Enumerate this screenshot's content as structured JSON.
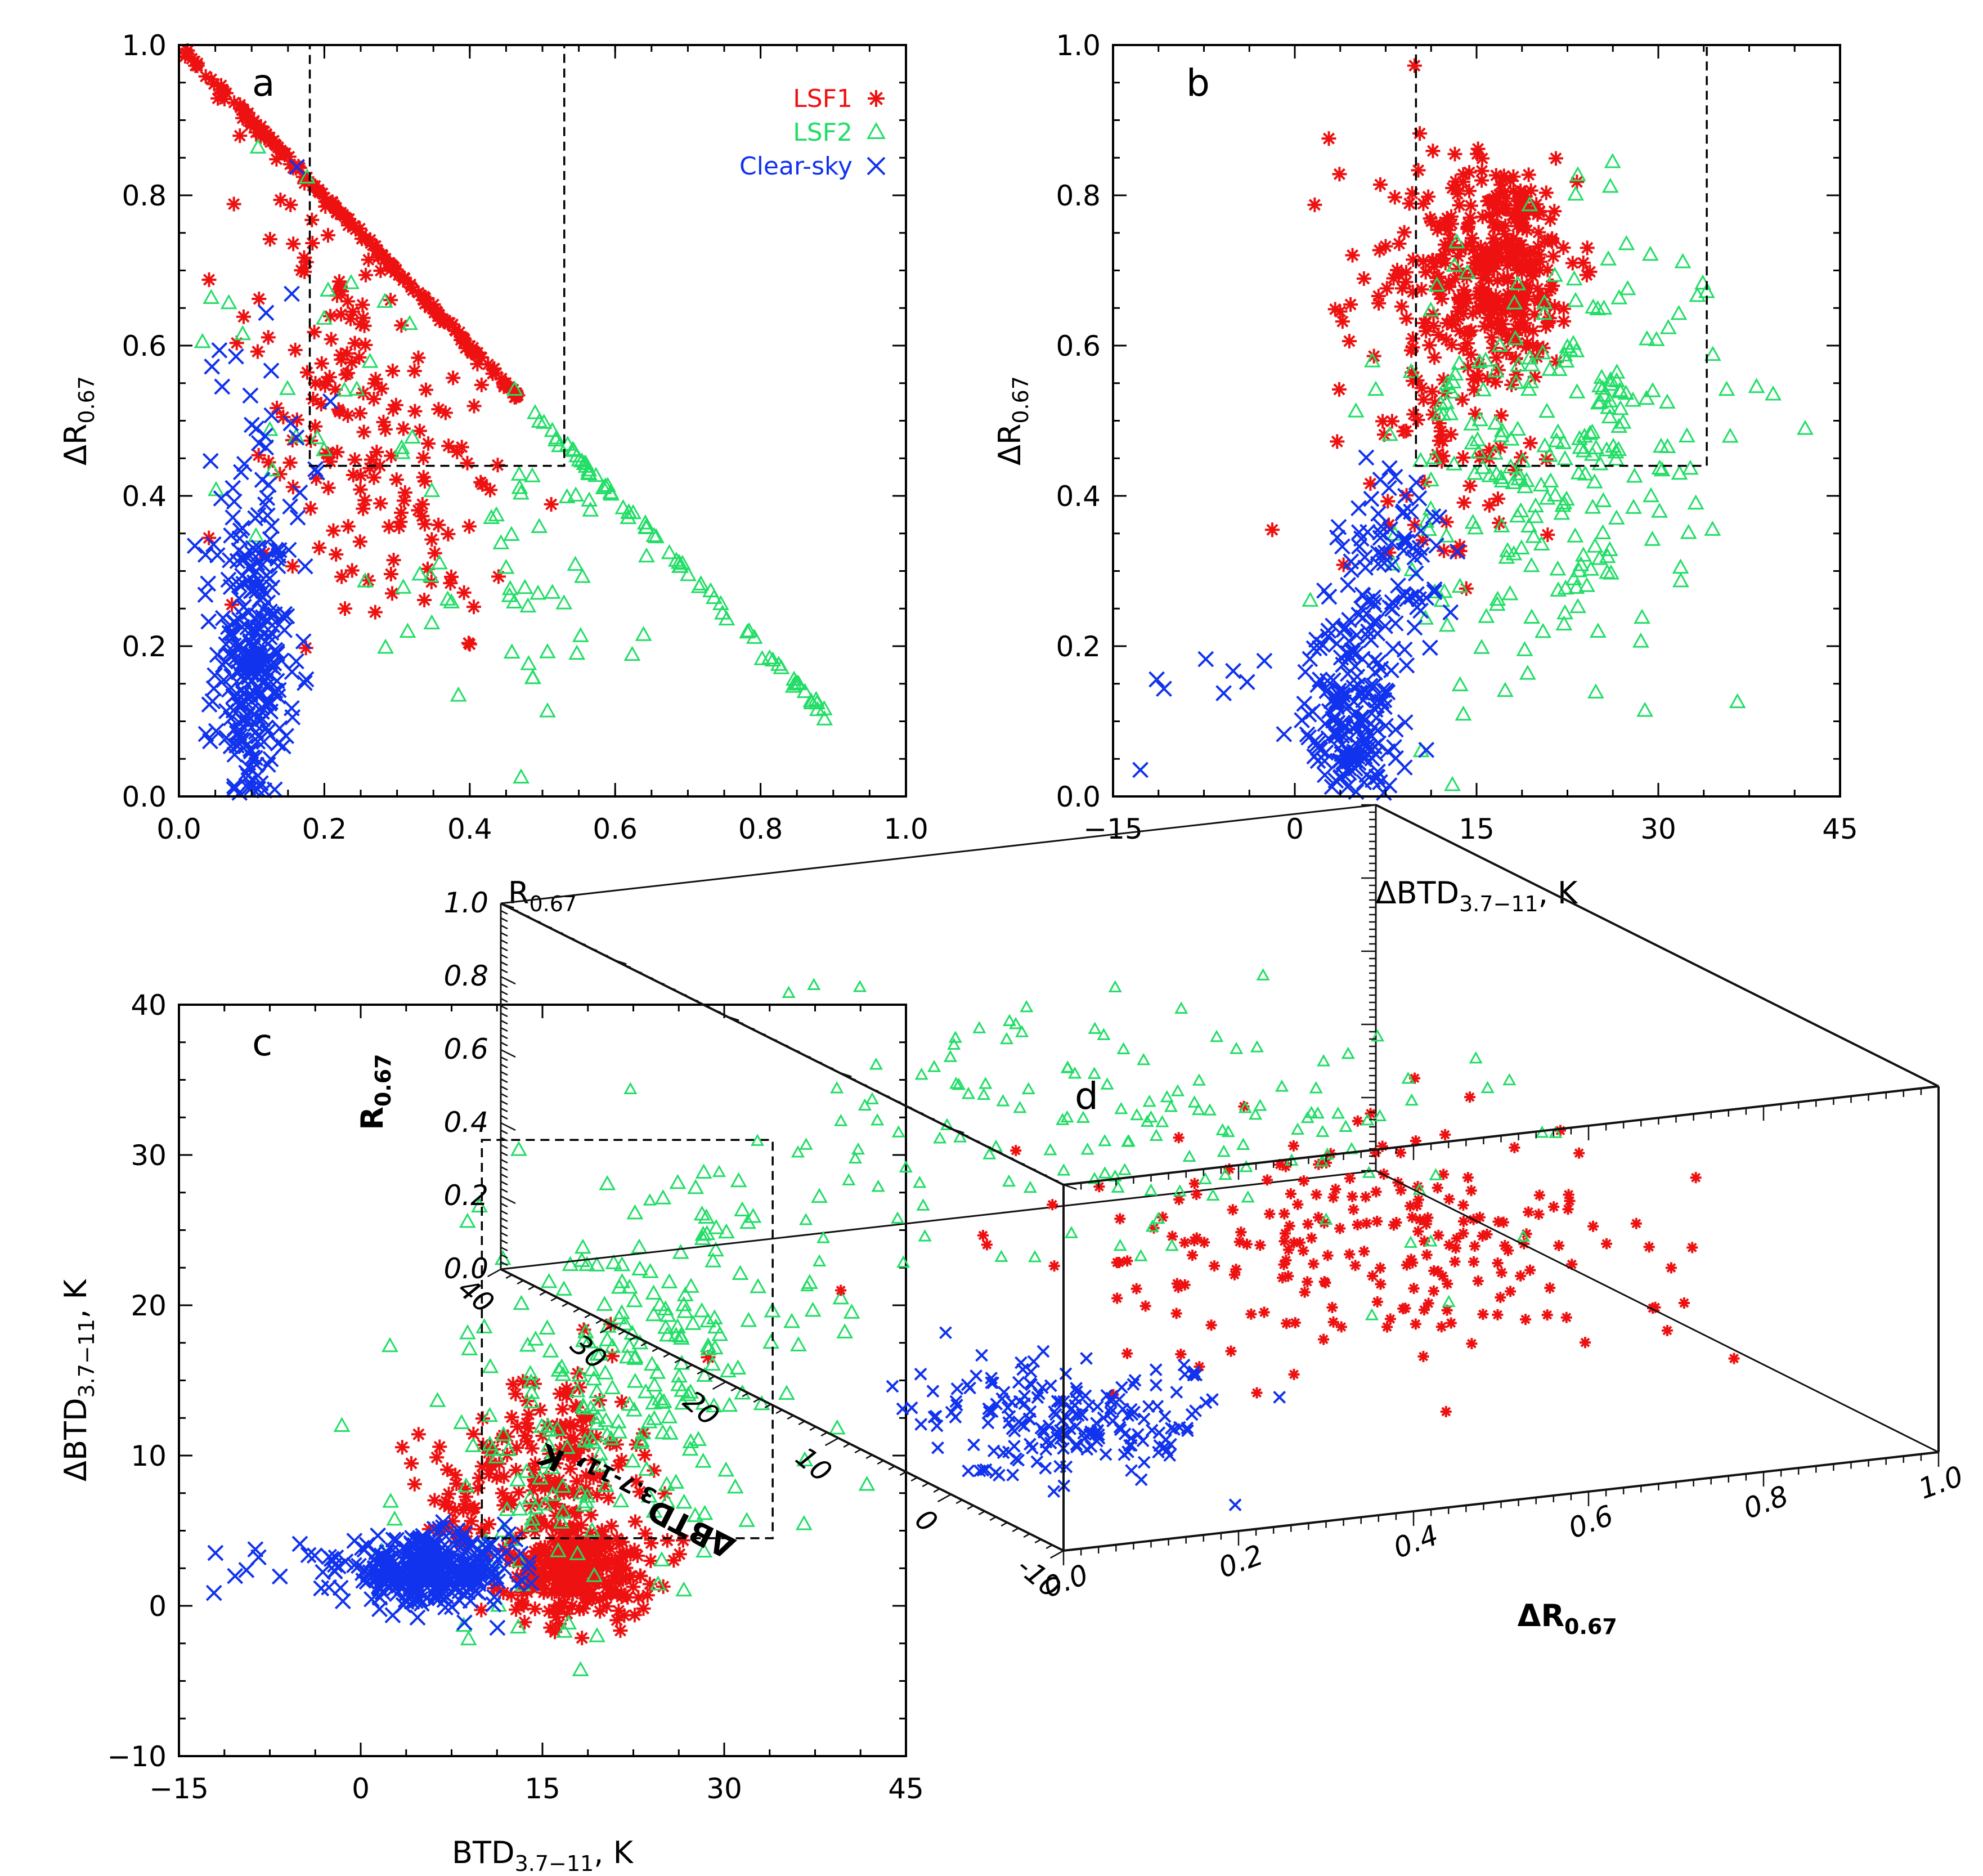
{
  "colors": {
    "lsf1": "#ee1111",
    "lsf2": "#22dd66",
    "clear": "#1133ee"
  },
  "legend": [
    {
      "key": "lsf1",
      "label": "LSF1",
      "marker": "asterisk"
    },
    {
      "key": "lsf2",
      "label": "LSF2",
      "marker": "triangle"
    },
    {
      "key": "clear",
      "label": "Clear-sky",
      "marker": "x"
    }
  ],
  "chart_data": [
    {
      "id": "a",
      "type": "scatter",
      "panel_letter": "a",
      "xlabel": {
        "main": "R",
        "sub": "0.67"
      },
      "ylabel": {
        "prefix": "ΔR",
        "sub": "0.67"
      },
      "xlim": [
        0,
        1
      ],
      "ylim": [
        0,
        1
      ],
      "xticks": [
        "0.0",
        "0.2",
        "0.4",
        "0.6",
        "0.8",
        "1.0"
      ],
      "yticks": [
        "0.0",
        "0.2",
        "0.4",
        "0.6",
        "0.8",
        "1.0"
      ],
      "threshold_box": {
        "x": [
          0.18,
          0.53
        ],
        "y": [
          0.44,
          1.0
        ]
      },
      "series": [
        {
          "key": "lsf1",
          "name": "LSF1",
          "clusters": [
            {
              "along": {
                "x": [
                  0.0,
                  0.47
                ],
                "y": [
                  1.0,
                  0.53
                ]
              },
              "n": 170,
              "jitter": [
                0.004,
                0.004
              ]
            },
            {
              "cx": 0.25,
              "cy": 0.55,
              "sx": 0.09,
              "sy": 0.14,
              "n": 170
            },
            {
              "cx": 0.36,
              "cy": 0.36,
              "sx": 0.06,
              "sy": 0.09,
              "n": 30
            }
          ]
        },
        {
          "key": "lsf2",
          "name": "LSF2",
          "clusters": [
            {
              "along": {
                "x": [
                  0.45,
                  0.9
                ],
                "y": [
                  0.55,
                  0.1
                ]
              },
              "n": 70,
              "jitter": [
                0.005,
                0.005
              ]
            },
            {
              "cx": 0.47,
              "cy": 0.3,
              "sx": 0.09,
              "sy": 0.1,
              "n": 50
            },
            {
              "cx": 0.15,
              "cy": 0.55,
              "sx": 0.08,
              "sy": 0.15,
              "n": 25
            }
          ]
        },
        {
          "key": "clear",
          "name": "Clear-sky",
          "clusters": [
            {
              "cx": 0.1,
              "cy": 0.17,
              "sx": 0.025,
              "sy": 0.1,
              "n": 280
            },
            {
              "cx": 0.12,
              "cy": 0.45,
              "sx": 0.04,
              "sy": 0.12,
              "n": 40
            }
          ]
        }
      ]
    },
    {
      "id": "b",
      "type": "scatter",
      "panel_letter": "b",
      "xlabel": {
        "main": "ΔBTD",
        "sub": "3.7−11",
        "suffix": ", K"
      },
      "ylabel": {
        "prefix": "ΔR",
        "sub": "0.67"
      },
      "xlim": [
        -15,
        45
      ],
      "ylim": [
        0,
        1
      ],
      "xticks": [
        "−15",
        "0",
        "15",
        "30",
        "45"
      ],
      "yticks": [
        "0.0",
        "0.2",
        "0.4",
        "0.6",
        "0.8",
        "1.0"
      ],
      "threshold_box": {
        "x": [
          10,
          34
        ],
        "y": [
          0.44,
          1.0
        ]
      },
      "series": [
        {
          "key": "lsf1",
          "name": "LSF1",
          "clusters": [
            {
              "cx": 17,
              "cy": 0.71,
              "sx": 3.2,
              "sy": 0.07,
              "n": 330
            },
            {
              "cx": 11,
              "cy": 0.65,
              "sx": 4,
              "sy": 0.14,
              "n": 90
            },
            {
              "cx": 14,
              "cy": 0.45,
              "sx": 3,
              "sy": 0.08,
              "n": 40
            }
          ]
        },
        {
          "key": "lsf2",
          "name": "LSF2",
          "clusters": [
            {
              "cx": 22,
              "cy": 0.5,
              "sx": 7,
              "sy": 0.13,
              "n": 200
            },
            {
              "cx": 20,
              "cy": 0.28,
              "sx": 6,
              "sy": 0.1,
              "n": 50
            }
          ]
        },
        {
          "key": "clear",
          "name": "Clear-sky",
          "clusters": [
            {
              "cx": 4.5,
              "cy": 0.1,
              "sx": 1.8,
              "sy": 0.07,
              "n": 200
            },
            {
              "cx": 8,
              "cy": 0.3,
              "sx": 2.2,
              "sy": 0.09,
              "n": 90
            },
            {
              "cx": -8,
              "cy": 0.14,
              "sx": 4,
              "sy": 0.04,
              "n": 10
            }
          ]
        }
      ]
    },
    {
      "id": "c",
      "type": "scatter",
      "panel_letter": "c",
      "xlabel": {
        "main": "BTD",
        "sub": "3.7−11",
        "suffix": ", K"
      },
      "ylabel": {
        "prefix": "ΔBTD",
        "sub": "3.7−11",
        "suffix": ", K"
      },
      "xlim": [
        -15,
        45
      ],
      "ylim": [
        -10,
        40
      ],
      "xticks": [
        "−15",
        "0",
        "15",
        "30",
        "45"
      ],
      "yticks": [
        "−10",
        "0",
        "10",
        "20",
        "30",
        "40"
      ],
      "threshold_box": {
        "x": [
          10,
          34
        ],
        "y": [
          4.5,
          31
        ]
      },
      "series": [
        {
          "key": "lsf1",
          "name": "LSF1",
          "clusters": [
            {
              "cx": 18,
              "cy": 2.5,
              "sx": 3,
              "sy": 1.6,
              "n": 300
            },
            {
              "cx": 16,
              "cy": 10,
              "sx": 3.5,
              "sy": 3,
              "n": 140
            },
            {
              "cx": 8,
              "cy": 6,
              "sx": 3,
              "sy": 3,
              "n": 40
            }
          ]
        },
        {
          "key": "lsf2",
          "name": "LSF2",
          "clusters": [
            {
              "cx": 24,
              "cy": 16,
              "sx": 7,
              "sy": 6,
              "n": 200
            },
            {
              "cx": 15,
              "cy": 8,
              "sx": 6,
              "sy": 5,
              "n": 60
            }
          ]
        },
        {
          "key": "clear",
          "name": "Clear-sky",
          "clusters": [
            {
              "cx": 5.5,
              "cy": 2.3,
              "sx": 3.5,
              "sy": 1.1,
              "n": 380
            },
            {
              "cx": -8,
              "cy": 3,
              "sx": 4,
              "sy": 1,
              "n": 12
            }
          ]
        }
      ]
    },
    {
      "id": "d",
      "type": "scatter3d",
      "panel_letter": "d",
      "xlabel": {
        "prefix": "ΔR",
        "sub": "0.67"
      },
      "ylabel": {
        "main": "ΔBTD",
        "sub": "3.7-11",
        "suffix": ", K"
      },
      "zlabel": {
        "main": "R",
        "sub": "0.67"
      },
      "xlim": [
        0,
        1
      ],
      "ylim": [
        -10,
        40
      ],
      "zlim": [
        0,
        1
      ],
      "xticks": [
        "0.0",
        "0.2",
        "0.4",
        "0.6",
        "0.8",
        "1.0"
      ],
      "yticks": [
        "-10",
        "0",
        "10",
        "20",
        "30",
        "40"
      ],
      "zticks": [
        "0.0",
        "0.2",
        "0.4",
        "0.6",
        "0.8",
        "1.0"
      ],
      "series": [
        {
          "key": "lsf1",
          "name": "LSF1",
          "clusters": [
            {
              "cx": 0.65,
              "cy": 14,
              "cz": 0.3,
              "sx": 0.15,
              "sy": 6,
              "sz": 0.12,
              "n": 220
            }
          ]
        },
        {
          "key": "lsf2",
          "name": "LSF2",
          "clusters": [
            {
              "cx": 0.45,
              "cy": 22,
              "cz": 0.55,
              "sx": 0.2,
              "sy": 8,
              "sz": 0.15,
              "n": 160
            }
          ]
        },
        {
          "key": "clear",
          "name": "Clear-sky",
          "clusters": [
            {
              "cx": 0.15,
              "cy": 3,
              "cz": 0.12,
              "sx": 0.08,
              "sy": 3,
              "sz": 0.06,
              "n": 200
            }
          ]
        }
      ]
    }
  ]
}
